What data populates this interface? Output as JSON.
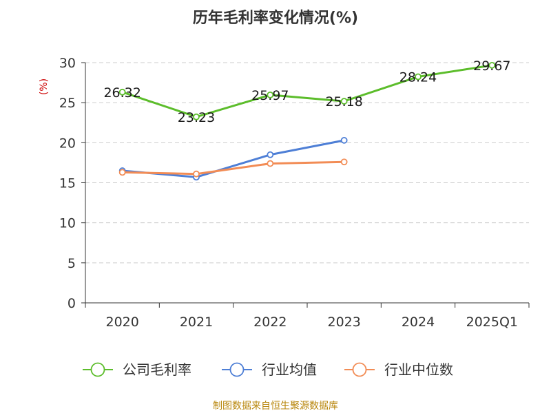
{
  "chart_data": {
    "type": "line",
    "title": "历年毛利率变化情况(%)",
    "ylabel": "(%)",
    "xlabel": "",
    "categories": [
      "2020",
      "2021",
      "2022",
      "2023",
      "2024",
      "2025Q1"
    ],
    "ylim": [
      0,
      30
    ],
    "yticks": [
      0,
      5,
      10,
      15,
      20,
      25,
      30
    ],
    "grid": true,
    "legend_position": "bottom",
    "series": [
      {
        "name": "公司毛利率",
        "color": "#5cbd2b",
        "values": [
          26.32,
          23.23,
          25.97,
          25.18,
          28.24,
          29.67
        ],
        "labels": [
          "26.32",
          "23.23",
          "25.97",
          "25.18",
          "28.24",
          "29.67"
        ],
        "show_labels": true
      },
      {
        "name": "行业均值",
        "color": "#4e7fd6",
        "values": [
          16.5,
          15.7,
          18.5,
          20.3,
          null,
          null
        ],
        "show_labels": false
      },
      {
        "name": "行业中位数",
        "color": "#f28c55",
        "values": [
          16.3,
          16.1,
          17.4,
          17.6,
          null,
          null
        ],
        "show_labels": false
      }
    ]
  },
  "source_text": "制图数据来自恒生聚源数据库",
  "colors": {
    "axis": "#333333",
    "grid": "#cccccc",
    "ylabel": "#cc0000",
    "source": "#b8860b"
  }
}
